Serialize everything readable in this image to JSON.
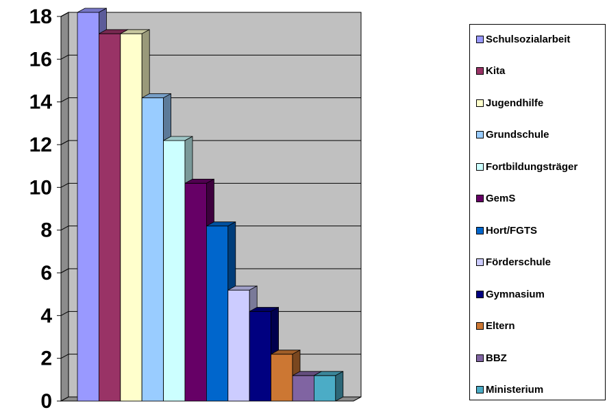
{
  "chart_data": {
    "type": "bar",
    "categories": [
      "Schulsozialarbeit",
      "Kita",
      "Jugendhilfe",
      "Grundschule",
      "Fortbildungsträger",
      "GemS",
      "Hort/FGTS",
      "Förderschule",
      "Gymnasium",
      "Eltern",
      "BBZ",
      "Ministerium"
    ],
    "values": [
      18,
      17,
      17,
      14,
      12,
      10,
      8,
      5,
      4,
      2,
      1,
      1
    ],
    "colors": [
      "#9999ff",
      "#993366",
      "#ffffcc",
      "#99ccff",
      "#ccffff",
      "#660066",
      "#0066cc",
      "#ccccff",
      "#000080",
      "#cc7733",
      "#8064a2",
      "#4bacc6"
    ],
    "ylim": [
      0,
      18
    ],
    "yticks": [
      "0",
      "2",
      "4",
      "6",
      "8",
      "10",
      "12",
      "14",
      "16",
      "18"
    ],
    "grid": true,
    "three_d": true,
    "legend_position": "right",
    "wall_color": "#c0c0c0"
  }
}
